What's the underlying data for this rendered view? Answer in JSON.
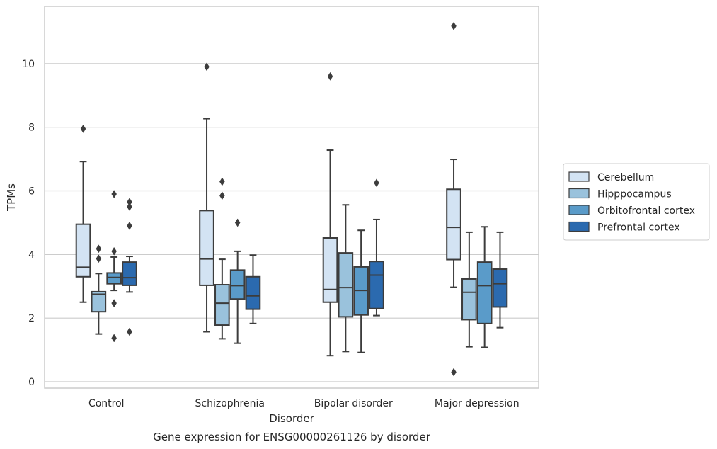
{
  "chart_data": {
    "type": "box",
    "caption": "Gene expression for ENSG00000261126 by disorder",
    "xlabel": "Disorder",
    "ylabel": "TPMs",
    "ylim": [
      -0.2,
      11.8
    ],
    "yticks": [
      0,
      2,
      4,
      6,
      8,
      10
    ],
    "grid": "y",
    "legend_position": "right",
    "categories": [
      "Control",
      "Schizophrenia",
      "Bipolar disorder",
      "Major depression"
    ],
    "series": [
      {
        "name": "Cerebellum",
        "color": "#d3e3f3",
        "boxes": [
          {
            "whisker_low": 2.5,
            "q1": 3.3,
            "median": 3.6,
            "q3": 4.95,
            "whisker_high": 6.92,
            "outliers": [
              7.95
            ]
          },
          {
            "whisker_low": 1.57,
            "q1": 3.03,
            "median": 3.86,
            "q3": 5.38,
            "whisker_high": 8.27,
            "outliers": [
              9.9
            ]
          },
          {
            "whisker_low": 0.82,
            "q1": 2.5,
            "median": 2.9,
            "q3": 4.52,
            "whisker_high": 7.28,
            "outliers": [
              9.6
            ]
          },
          {
            "whisker_low": 2.97,
            "q1": 3.84,
            "median": 4.85,
            "q3": 6.05,
            "whisker_high": 6.99,
            "outliers": [
              11.18,
              0.3
            ]
          }
        ]
      },
      {
        "name": "Hipppocampus",
        "color": "#9ac2dc",
        "boxes": [
          {
            "whisker_low": 1.5,
            "q1": 2.2,
            "median": 2.75,
            "q3": 2.83,
            "whisker_high": 3.4,
            "outliers": [
              4.18,
              3.87
            ]
          },
          {
            "whisker_low": 1.35,
            "q1": 1.78,
            "median": 2.47,
            "q3": 3.05,
            "whisker_high": 3.85,
            "outliers": [
              6.29,
              5.85
            ]
          },
          {
            "whisker_low": 0.95,
            "q1": 2.04,
            "median": 2.96,
            "q3": 4.05,
            "whisker_high": 5.56,
            "outliers": []
          },
          {
            "whisker_low": 1.1,
            "q1": 1.95,
            "median": 2.81,
            "q3": 3.23,
            "whisker_high": 4.7,
            "outliers": []
          }
        ]
      },
      {
        "name": "Orbitofrontal cortex",
        "color": "#5a9bc9",
        "boxes": [
          {
            "whisker_low": 2.87,
            "q1": 3.08,
            "median": 3.28,
            "q3": 3.42,
            "whisker_high": 3.92,
            "outliers": [
              5.9,
              4.1,
              2.47,
              1.37
            ]
          },
          {
            "whisker_low": 1.21,
            "q1": 2.6,
            "median": 3.02,
            "q3": 3.51,
            "whisker_high": 4.1,
            "outliers": [
              5.0
            ]
          },
          {
            "whisker_low": 0.92,
            "q1": 2.1,
            "median": 2.87,
            "q3": 3.61,
            "whisker_high": 4.76,
            "outliers": []
          },
          {
            "whisker_low": 1.08,
            "q1": 1.83,
            "median": 3.02,
            "q3": 3.76,
            "whisker_high": 4.87,
            "outliers": []
          }
        ]
      },
      {
        "name": "Prefrontal cortex",
        "color": "#2b6aaf",
        "boxes": [
          {
            "whisker_low": 2.82,
            "q1": 3.03,
            "median": 3.27,
            "q3": 3.76,
            "whisker_high": 3.94,
            "outliers": [
              5.65,
              5.5,
              4.9,
              1.57
            ]
          },
          {
            "whisker_low": 1.83,
            "q1": 2.28,
            "median": 2.7,
            "q3": 3.3,
            "whisker_high": 3.98,
            "outliers": []
          },
          {
            "whisker_low": 2.08,
            "q1": 2.3,
            "median": 3.35,
            "q3": 3.78,
            "whisker_high": 5.1,
            "outliers": [
              6.25
            ]
          },
          {
            "whisker_low": 1.7,
            "q1": 2.35,
            "median": 3.08,
            "q3": 3.54,
            "whisker_high": 4.7,
            "outliers": []
          }
        ]
      }
    ]
  }
}
